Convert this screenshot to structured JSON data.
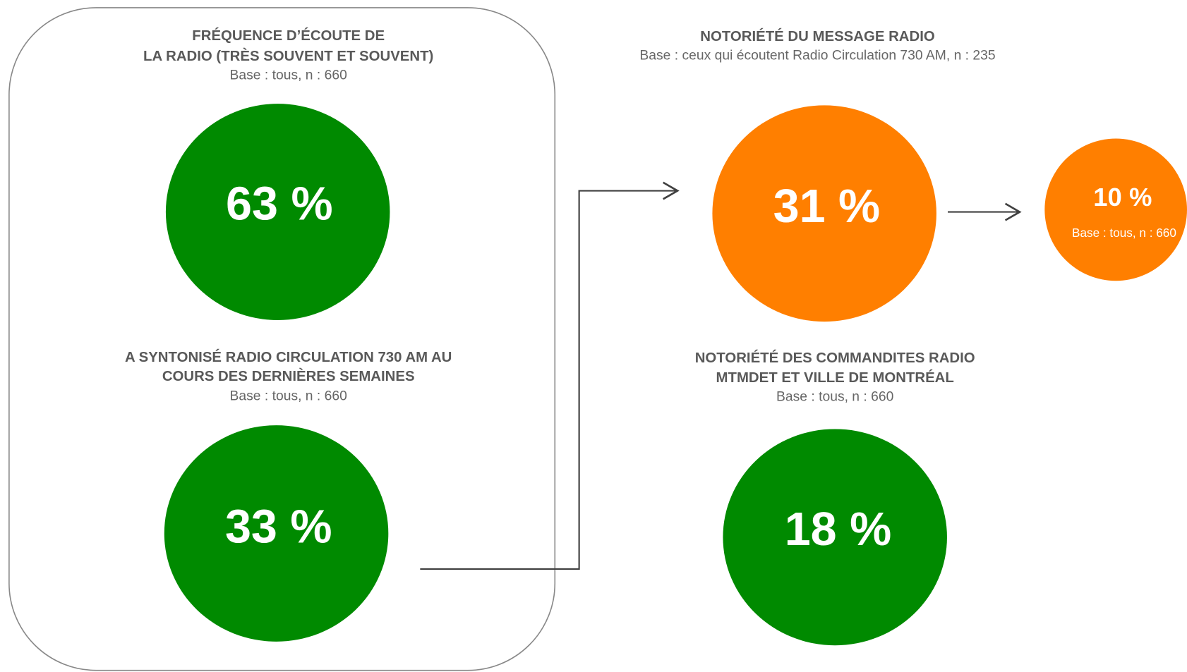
{
  "panels": [
    {
      "title": [
        "FRÉQUENCE D’ÉCOUTE DE",
        "LA RADIO (TRÈS SOUVENT ET SOUVENT)"
      ],
      "base": "Base : tous, n : 660",
      "value": "63 %"
    },
    {
      "title": [
        "A SYNTONISÉ RADIO CIRCULATION 730 AM AU",
        "COURS DES DERNIÈRES SEMAINES"
      ],
      "base": "Base : tous, n : 660",
      "value": "33 %"
    },
    {
      "title": [
        "NOTORIÉTÉ DU MESSAGE RADIO"
      ],
      "base": "Base : ceux qui écoutent Radio Circulation 730 AM, n : 235",
      "value": "31 %"
    },
    {
      "title": [
        "NOTORIÉTÉ DES COMMANDITES RADIO",
        "MTMDET ET VILLE DE MONTRÉAL"
      ],
      "base": "Base : tous, n : 660",
      "value": "18 %"
    }
  ],
  "side_result": {
    "value": "10 %",
    "base": "Base : tous, n : 660"
  }
}
